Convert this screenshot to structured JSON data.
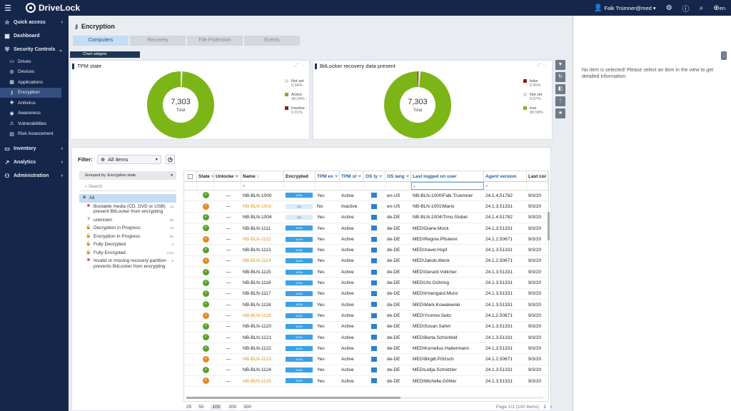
{
  "topbar": {
    "brand": "DriveLock",
    "user": "Falk Trümner@med",
    "lang": "en"
  },
  "sidebar": {
    "quick_access": "Quick access",
    "dashboard": "Dashboard",
    "security_controls": "Security Controls",
    "items": [
      {
        "label": "Drives",
        "icon": "drive-icon"
      },
      {
        "label": "Devices",
        "icon": "devices-icon"
      },
      {
        "label": "Applications",
        "icon": "applications-icon"
      },
      {
        "label": "Encryption",
        "icon": "encryption-icon"
      },
      {
        "label": "Antivirus",
        "icon": "antivirus-icon"
      },
      {
        "label": "Awareness",
        "icon": "awareness-icon"
      },
      {
        "label": "Vulnerabilities",
        "icon": "vulnerabilities-icon"
      },
      {
        "label": "Risk Assessment",
        "icon": "risk-icon"
      }
    ],
    "inventory": "Inventory",
    "analytics": "Analytics",
    "administration": "Administration"
  },
  "page": {
    "title": "Encryption"
  },
  "tabs": [
    "Computers",
    "Recovery",
    "File Protection",
    "Events"
  ],
  "chart_widgets_label": "Chart widgets",
  "chart_data": [
    {
      "type": "pie",
      "title": "TPM state",
      "center_value": "7,303",
      "center_label": "Total",
      "slices": [
        {
          "name": "Not set",
          "pct": "0.94%",
          "value": 0.94,
          "color": "#e8e8e8"
        },
        {
          "name": "Active",
          "pct": "99.04%",
          "value": 99.04,
          "color": "#7cb518"
        },
        {
          "name": "Inactive",
          "pct": "0.01%",
          "value": 0.01,
          "color": "#8b1a1a"
        }
      ]
    },
    {
      "type": "pie",
      "title": "BitLocker recovery data present",
      "center_value": "7,303",
      "center_label": "Total",
      "slices": [
        {
          "name": "false",
          "pct": "0.45%",
          "value": 0.45,
          "color": "#8b1a1a"
        },
        {
          "name": "Not set",
          "pct": "0.97%",
          "value": 0.97,
          "color": "#e8e8e8"
        },
        {
          "name": "true",
          "pct": "98.58%",
          "value": 98.58,
          "color": "#7cb518"
        }
      ]
    }
  ],
  "filter": {
    "label": "Filter:",
    "value": "All items"
  },
  "grouping": {
    "label": "Grouped by: Encryption state",
    "search_placeholder": "Search"
  },
  "tree": [
    {
      "label": "All",
      "count": "",
      "icon": "globe-icon"
    },
    {
      "label": "Bootable media (CD, DVD or USB) prevent BitLocker from encrypting",
      "count": "13",
      "icon": "error-icon"
    },
    {
      "label": "unknown",
      "count": "89",
      "icon": "unknown-icon"
    },
    {
      "label": "Decryption in Progress",
      "count": "12",
      "icon": "lock-open-icon"
    },
    {
      "label": "Encryption in Progress",
      "count": "65",
      "icon": "lock-progress-icon"
    },
    {
      "label": "Fully Decrypted",
      "count": "2",
      "icon": "unlock-icon"
    },
    {
      "label": "Fully Encrypted",
      "count": "7114",
      "icon": "lock-icon"
    },
    {
      "label": "Invalid or missing recovery partition prevents BitLocker from encrypting",
      "count": "8",
      "icon": "error-icon"
    }
  ],
  "columns": [
    "State",
    "Unlocke",
    "Name",
    "Encrypted",
    "TPM ex",
    "TPM st",
    "OS ty",
    "OS lang",
    "Last logged on user",
    "Agent version",
    "Last cor"
  ],
  "rows": [
    {
      "state": "ok",
      "unlock": "—",
      "name": "NB-BLN-1000",
      "warn": false,
      "enc": 100,
      "tpm_ex": "Yes",
      "tpm_st": "Active",
      "lang": "en-US",
      "user": "NB-BLN-1000\\Falk.Truemner",
      "agent": "24.1.4.51782",
      "last": "9/3/20"
    },
    {
      "state": "warn",
      "unlock": "—",
      "name": "NB-BLN-1001",
      "warn": true,
      "enc": 0,
      "tpm_ex": "No",
      "tpm_st": "Inactive",
      "lang": "en-US",
      "user": "NB-BLN-1001\\Mario",
      "agent": "24.1.3.51331",
      "last": "9/3/20"
    },
    {
      "state": "ok",
      "unlock": "—",
      "name": "NB-BLN-1004",
      "warn": false,
      "enc": 0,
      "tpm_ex": "Yes",
      "tpm_st": "Active",
      "lang": "de-DE",
      "user": "NB-BLN-1004\\Timo.Stubel",
      "agent": "24.1.4.51782",
      "last": "9/3/20"
    },
    {
      "state": "ok",
      "unlock": "—",
      "name": "NB-BLN-1111",
      "warn": false,
      "enc": 100,
      "tpm_ex": "Yes",
      "tpm_st": "Active",
      "lang": "de-DE",
      "user": "MED\\Diane.Mock",
      "agent": "24.1.3.51331",
      "last": "9/3/20"
    },
    {
      "state": "warn",
      "unlock": "—",
      "name": "NB-BLN-1112",
      "warn": true,
      "enc": 100,
      "tpm_ex": "Yes",
      "tpm_st": "Active",
      "lang": "de-DE",
      "user": "MED\\Regine.Pfisterer",
      "agent": "24.1.2.50671",
      "last": "9/3/20"
    },
    {
      "state": "ok",
      "unlock": "—",
      "name": "NB-BLN-1113",
      "warn": false,
      "enc": 100,
      "tpm_ex": "Yes",
      "tpm_st": "Active",
      "lang": "de-DE",
      "user": "MED\\Xaver.Hopf",
      "agent": "24.1.3.51331",
      "last": "9/3/20"
    },
    {
      "state": "warn",
      "unlock": "—",
      "name": "NB-BLN-1114",
      "warn": true,
      "enc": 100,
      "tpm_ex": "Yes",
      "tpm_st": "Active",
      "lang": "de-DE",
      "user": "MED\\Jakob.Wenk",
      "agent": "24.1.2.50671",
      "last": "9/3/20"
    },
    {
      "state": "ok",
      "unlock": "—",
      "name": "NB-BLN-1115",
      "warn": false,
      "enc": 100,
      "tpm_ex": "Yes",
      "tpm_st": "Active",
      "lang": "de-DE",
      "user": "MED\\Gerard.Volkmer",
      "agent": "24.1.3.51331",
      "last": "9/3/20"
    },
    {
      "state": "ok",
      "unlock": "—",
      "name": "NB-BLN-1116",
      "warn": false,
      "enc": 100,
      "tpm_ex": "Yes",
      "tpm_st": "Active",
      "lang": "de-DE",
      "user": "MED\\Utz.Göhring",
      "agent": "24.1.3.51331",
      "last": "9/3/20"
    },
    {
      "state": "ok",
      "unlock": "—",
      "name": "NB-BLN-1117",
      "warn": false,
      "enc": 100,
      "tpm_ex": "Yes",
      "tpm_st": "Active",
      "lang": "de-DE",
      "user": "MED\\Irmengard.Munz",
      "agent": "24.1.3.51331",
      "last": "9/3/20"
    },
    {
      "state": "ok",
      "unlock": "—",
      "name": "NB-BLN-1118",
      "warn": false,
      "enc": 100,
      "tpm_ex": "Yes",
      "tpm_st": "Active",
      "lang": "de-DE",
      "user": "MED\\Mark.Kowalewski",
      "agent": "24.1.3.51331",
      "last": "9/3/20"
    },
    {
      "state": "warn",
      "unlock": "—",
      "name": "NB-BLN-1119",
      "warn": true,
      "enc": 100,
      "tpm_ex": "Yes",
      "tpm_st": "Active",
      "lang": "de-DE",
      "user": "MED\\Yvonne.Seitz",
      "agent": "24.1.2.50671",
      "last": "9/3/20"
    },
    {
      "state": "ok",
      "unlock": "—",
      "name": "NB-BLN-1120",
      "warn": false,
      "enc": 100,
      "tpm_ex": "Yes",
      "tpm_st": "Active",
      "lang": "de-DE",
      "user": "MED\\Susan.Sahm",
      "agent": "24.1.3.51331",
      "last": "9/3/20"
    },
    {
      "state": "ok",
      "unlock": "—",
      "name": "NB-BLN-1121",
      "warn": false,
      "enc": 100,
      "tpm_ex": "Yes",
      "tpm_st": "Active",
      "lang": "de-DE",
      "user": "MED\\Berta.Schönfeld",
      "agent": "24.1.3.51331",
      "last": "9/3/20"
    },
    {
      "state": "ok",
      "unlock": "—",
      "name": "NB-BLN-1122",
      "warn": false,
      "enc": 100,
      "tpm_ex": "Yes",
      "tpm_st": "Active",
      "lang": "de-DE",
      "user": "MED\\Kornelius.Habermann",
      "agent": "24.1.3.51331",
      "last": "9/3/20"
    },
    {
      "state": "warn",
      "unlock": "—",
      "name": "NB-BLN-1123",
      "warn": true,
      "enc": 100,
      "tpm_ex": "Yes",
      "tpm_st": "Active",
      "lang": "de-DE",
      "user": "MED\\Birgitt.Pötzsch",
      "agent": "24.1.2.50671",
      "last": "9/3/20"
    },
    {
      "state": "ok",
      "unlock": "—",
      "name": "NB-BLN-1124",
      "warn": false,
      "enc": 100,
      "tpm_ex": "Yes",
      "tpm_st": "Active",
      "lang": "de-DE",
      "user": "MED\\Lidija.Schnitzler",
      "agent": "24.1.3.51331",
      "last": "9/3/20"
    },
    {
      "state": "warn",
      "unlock": "—",
      "name": "NB-BLN-1125",
      "warn": true,
      "enc": 100,
      "tpm_ex": "Yes",
      "tpm_st": "Active",
      "lang": "de-DE",
      "user": "MED\\Michelle.Göhler",
      "agent": "24.1.3.51331",
      "last": "9/3/20"
    }
  ],
  "pager": {
    "sizes": [
      "25",
      "50",
      "100",
      "200",
      "500"
    ],
    "selected": "100",
    "info": "Page 1/1 (100 items)",
    "page": "1"
  },
  "detail": {
    "message": "No item is selected! Please select an item in the view to get detailed information."
  }
}
